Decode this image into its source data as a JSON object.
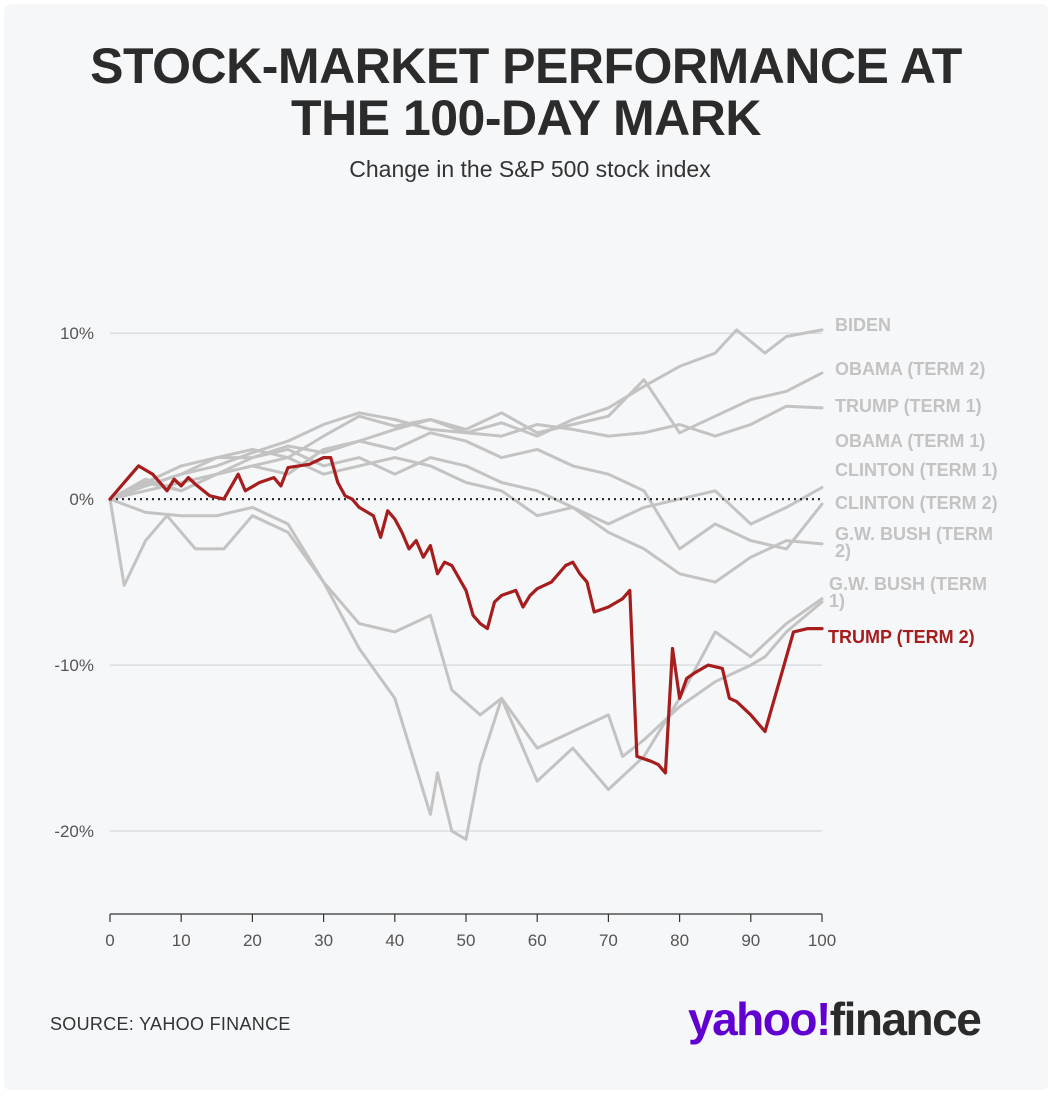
{
  "title_line1": "STOCK-MARKET PERFORMANCE AT",
  "title_line2": "THE 100-DAY MARK",
  "subtitle": "Change in the S&P 500 stock index",
  "source": "SOURCE: YAHOO FINANCE",
  "logo": {
    "part1": "yahoo!",
    "part2": "finance"
  },
  "colors": {
    "highlight": "#a51d1d",
    "other": "#c3c3c3",
    "grid": "#dadde2"
  },
  "chart_data": {
    "type": "line",
    "title": "STOCK-MARKET PERFORMANCE AT THE 100-DAY MARK",
    "subtitle": "Change in the S&P 500 stock index",
    "xlabel": "",
    "ylabel": "",
    "xlim": [
      0,
      100
    ],
    "ylim": [
      -25,
      12
    ],
    "xticks": [
      0,
      10,
      20,
      30,
      40,
      50,
      60,
      70,
      80,
      90,
      100
    ],
    "yticks": [
      {
        "value": 10,
        "label": "10%"
      },
      {
        "value": 0,
        "label": "0%"
      },
      {
        "value": -10,
        "label": "-10%"
      },
      {
        "value": -20,
        "label": "-20%"
      }
    ],
    "grid": true,
    "zero_line": "dotted",
    "series": [
      {
        "name": "BIDEN",
        "highlight": false,
        "end_label": [
          "BIDEN"
        ],
        "x": [
          0,
          5,
          10,
          15,
          20,
          25,
          30,
          35,
          40,
          45,
          50,
          55,
          60,
          65,
          70,
          75,
          80,
          85,
          88,
          90,
          92,
          95,
          100
        ],
        "y": [
          0,
          1.2,
          0.5,
          1.5,
          2.5,
          3.2,
          2.8,
          3.5,
          4.2,
          4.8,
          4.0,
          4.6,
          3.8,
          4.8,
          5.5,
          6.8,
          8.0,
          8.8,
          10.2,
          9.5,
          8.8,
          9.8,
          10.2
        ]
      },
      {
        "name": "OBAMA (TERM 2)",
        "highlight": false,
        "end_label": [
          "OBAMA (TERM 2)"
        ],
        "x": [
          0,
          5,
          10,
          15,
          20,
          25,
          30,
          35,
          40,
          45,
          50,
          55,
          60,
          65,
          70,
          75,
          80,
          85,
          90,
          95,
          100
        ],
        "y": [
          0,
          1.0,
          2.0,
          2.5,
          3.0,
          2.5,
          3.8,
          5.0,
          4.4,
          4.8,
          4.2,
          5.2,
          4.0,
          4.5,
          5.0,
          7.2,
          4.0,
          5.0,
          6.0,
          6.5,
          7.6
        ]
      },
      {
        "name": "TRUMP (TERM 1)",
        "highlight": false,
        "end_label": [
          "TRUMP (TERM 1)"
        ],
        "x": [
          0,
          5,
          10,
          15,
          20,
          25,
          30,
          35,
          40,
          45,
          50,
          55,
          60,
          65,
          70,
          75,
          80,
          85,
          90,
          95,
          100
        ],
        "y": [
          0,
          0.8,
          1.5,
          2.0,
          2.8,
          3.5,
          4.5,
          5.2,
          4.8,
          4.2,
          4.0,
          3.8,
          4.5,
          4.2,
          3.8,
          4.0,
          4.5,
          3.8,
          4.5,
          5.6,
          5.5
        ]
      },
      {
        "name": "OBAMA (TERM 1)",
        "highlight": false,
        "end_label": [
          "OBAMA (TERM 1)"
        ],
        "x": [
          0,
          2,
          5,
          8,
          12,
          16,
          20,
          25,
          30,
          35,
          40,
          45,
          48,
          52,
          55,
          60,
          65,
          70,
          75,
          80,
          85,
          90,
          95,
          100
        ],
        "y": [
          0,
          -5.2,
          -2.5,
          -1.0,
          -3.0,
          -3.0,
          -1.0,
          -2.0,
          -5.0,
          -7.5,
          -8.0,
          -7.0,
          -11.5,
          -13.0,
          -12.0,
          -17.0,
          -15.0,
          -17.5,
          -15.5,
          -12.0,
          -8.0,
          -9.5,
          -7.5,
          -6.0
        ]
      },
      {
        "name": "CLINTON (TERM 1)",
        "highlight": false,
        "end_label": [
          "CLINTON (TERM 1)"
        ],
        "x": [
          0,
          5,
          10,
          15,
          20,
          25,
          30,
          35,
          40,
          45,
          50,
          55,
          60,
          65,
          70,
          75,
          80,
          85,
          90,
          95,
          100
        ],
        "y": [
          0,
          0.5,
          1.0,
          1.5,
          2.0,
          2.5,
          1.5,
          2.0,
          2.5,
          2.0,
          1.0,
          0.5,
          -1.0,
          -0.5,
          -1.5,
          -0.5,
          0.0,
          0.5,
          -1.5,
          -0.5,
          0.7
        ]
      },
      {
        "name": "CLINTON (TERM 2)",
        "highlight": false,
        "end_label": [
          "CLINTON (TERM 2)"
        ],
        "x": [
          0,
          5,
          10,
          15,
          20,
          25,
          30,
          35,
          40,
          45,
          50,
          55,
          60,
          65,
          70,
          75,
          80,
          85,
          90,
          95,
          100
        ],
        "y": [
          0,
          1.0,
          0.5,
          1.5,
          2.0,
          1.5,
          3.0,
          3.5,
          3.0,
          4.0,
          3.5,
          2.5,
          3.0,
          2.0,
          1.5,
          0.5,
          -3.0,
          -1.5,
          -2.5,
          -3.0,
          -0.3
        ]
      },
      {
        "name": "G.W. BUSH (TERM 2)",
        "highlight": false,
        "end_label": [
          "G.W. BUSH (TERM",
          "2)"
        ],
        "x": [
          0,
          5,
          10,
          15,
          20,
          25,
          30,
          35,
          40,
          45,
          50,
          55,
          60,
          65,
          70,
          75,
          80,
          85,
          90,
          95,
          100
        ],
        "y": [
          0,
          0.8,
          1.5,
          2.5,
          2.5,
          3.0,
          2.0,
          2.5,
          1.5,
          2.5,
          2.0,
          1.0,
          0.5,
          -0.5,
          -2.0,
          -3.0,
          -4.5,
          -5.0,
          -3.5,
          -2.5,
          -2.7
        ]
      },
      {
        "name": "G.W. BUSH (TERM 1)",
        "highlight": false,
        "end_label": [
          "G.W. BUSH (TERM",
          "1)"
        ],
        "x": [
          0,
          5,
          10,
          15,
          20,
          25,
          30,
          35,
          40,
          45,
          46,
          48,
          50,
          52,
          55,
          60,
          65,
          70,
          72,
          75,
          80,
          85,
          90,
          92,
          95,
          100
        ],
        "y": [
          0,
          -0.8,
          -1.0,
          -1.0,
          -0.5,
          -1.5,
          -5.0,
          -9.0,
          -12.0,
          -19.0,
          -16.5,
          -20.0,
          -20.5,
          -16.0,
          -12.0,
          -15.0,
          -14.0,
          -13.0,
          -15.5,
          -14.5,
          -12.5,
          -11.0,
          -10.0,
          -9.5,
          -8.0,
          -6.2
        ]
      },
      {
        "name": "TRUMP (TERM 2)",
        "highlight": true,
        "end_label": [
          "TRUMP (TERM 2)"
        ],
        "x": [
          0,
          2,
          4,
          6,
          8,
          9,
          10,
          11,
          12,
          14,
          16,
          18,
          19,
          21,
          23,
          24,
          25,
          28,
          30,
          31,
          32,
          33,
          34,
          35,
          37,
          38,
          39,
          40,
          41,
          42,
          43,
          44,
          45,
          46,
          47,
          48,
          50,
          51,
          52,
          53,
          54,
          55,
          57,
          58,
          59,
          60,
          62,
          64,
          65,
          66,
          67,
          68,
          70,
          72,
          73,
          74,
          76,
          77,
          78,
          79,
          80,
          81,
          82,
          84,
          86,
          87,
          88,
          90,
          92,
          94,
          96,
          98,
          100
        ],
        "y": [
          0,
          1.0,
          2.0,
          1.5,
          0.5,
          1.2,
          0.8,
          1.3,
          0.9,
          0.2,
          0.0,
          1.5,
          0.5,
          1.0,
          1.3,
          0.8,
          1.9,
          2.1,
          2.5,
          2.5,
          1.0,
          0.2,
          0.0,
          -0.5,
          -1.0,
          -2.3,
          -0.7,
          -1.2,
          -2.0,
          -3.0,
          -2.5,
          -3.5,
          -2.8,
          -4.5,
          -3.8,
          -4.0,
          -5.5,
          -7.0,
          -7.5,
          -7.8,
          -6.2,
          -5.8,
          -5.5,
          -6.5,
          -5.8,
          -5.4,
          -5.0,
          -4.0,
          -3.8,
          -4.5,
          -5.0,
          -6.8,
          -6.5,
          -6.0,
          -5.5,
          -15.5,
          -15.8,
          -16.0,
          -16.5,
          -9.0,
          -12.0,
          -10.8,
          -10.5,
          -10.0,
          -10.2,
          -12.0,
          -12.2,
          -13.0,
          -14.0,
          -11.0,
          -8.0,
          -7.8,
          -7.8
        ]
      }
    ]
  }
}
